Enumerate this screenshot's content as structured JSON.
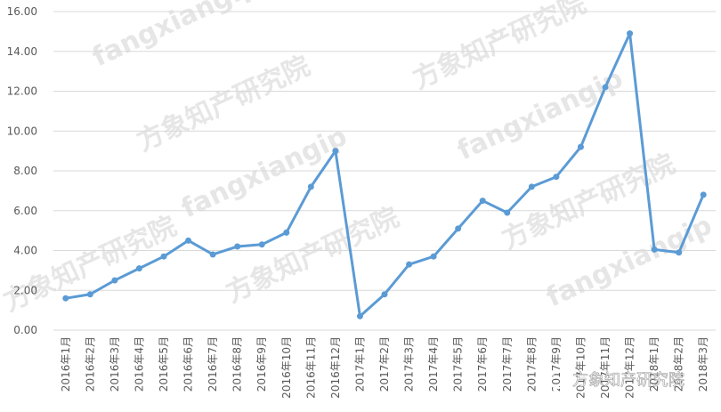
{
  "chart_data": {
    "type": "line",
    "categories": [
      "2016年1月",
      "2016年2月",
      "2016年3月",
      "2016年4月",
      "2016年5月",
      "2016年6月",
      "2016年7月",
      "2016年8月",
      "2016年9月",
      "2016年10月",
      "2016年11月",
      "2016年12月",
      "2017年1月",
      "2017年2月",
      "2017年3月",
      "2017年4月",
      "2017年5月",
      "2017年6月",
      "2017年7月",
      "2017年8月",
      "2017年9月",
      "2017年10月",
      "2017年11月",
      "2017年12月",
      "2018年1月",
      "2018年2月",
      "2018年3月"
    ],
    "series": [
      {
        "color": "#5b9bd5",
        "values": [
          1.6,
          1.8,
          2.5,
          3.1,
          3.7,
          4.5,
          3.8,
          4.2,
          4.3,
          4.9,
          7.2,
          9.0,
          0.7,
          1.8,
          3.3,
          3.7,
          5.1,
          6.5,
          5.9,
          7.2,
          7.7,
          9.2,
          12.2,
          14.9,
          4.05,
          3.9,
          6.8
        ]
      }
    ],
    "ylim": [
      0,
      16
    ],
    "yticks": [
      {
        "value": 0,
        "label": "0.00"
      },
      {
        "value": 2,
        "label": "2.00"
      },
      {
        "value": 4,
        "label": "4.00"
      },
      {
        "value": 6,
        "label": "6.00"
      },
      {
        "value": 8,
        "label": "8.00"
      },
      {
        "value": 10,
        "label": "10.00"
      },
      {
        "value": 12,
        "label": "12.00"
      },
      {
        "value": 14,
        "label": "14.00"
      },
      {
        "value": 16,
        "label": "16.00"
      }
    ],
    "grid": true,
    "watermark_brand": "fangxiangip",
    "watermark_name": "方象知产研究院"
  }
}
